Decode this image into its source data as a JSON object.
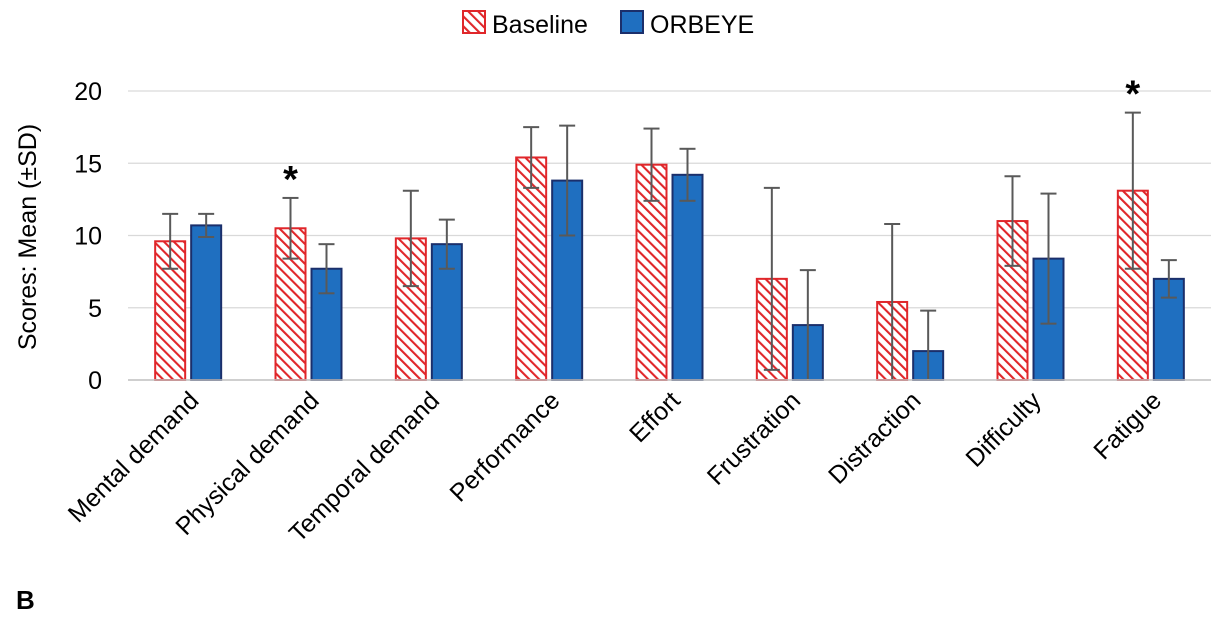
{
  "panel_label": "B",
  "colors": {
    "baseline_stroke": "#e0262a",
    "baseline_hatch": "#e0262a",
    "orbeye_fill": "#1f6fc0",
    "orbeye_stroke": "#1b2f6b",
    "error_bar": "#595959",
    "grid": "#d9d9d9",
    "axis": "#bfbfbf"
  },
  "chart_data": {
    "type": "bar",
    "ylabel": "Scores: Mean (±SD)",
    "ylim": [
      0,
      20
    ],
    "yticks": [
      0,
      5,
      10,
      15,
      20
    ],
    "grid": true,
    "legend_position": "top-center",
    "categories": [
      "Mental demand",
      "Physical demand",
      "Temporal demand",
      "Performance",
      "Effort",
      "Frustration",
      "Distraction",
      "Difficulty",
      "Fatigue"
    ],
    "series": [
      {
        "name": "Baseline",
        "pattern": "red-diagonal-hatch",
        "values": [
          9.6,
          10.5,
          9.8,
          15.4,
          14.9,
          7.0,
          5.4,
          11.0,
          13.1
        ],
        "sd": [
          1.9,
          2.1,
          3.3,
          2.1,
          2.5,
          6.3,
          5.4,
          3.1,
          5.4
        ]
      },
      {
        "name": "ORBEYE",
        "pattern": "solid-blue",
        "values": [
          10.7,
          7.7,
          9.4,
          13.8,
          14.2,
          3.8,
          2.0,
          8.4,
          7.0
        ],
        "sd": [
          0.8,
          1.7,
          1.7,
          3.8,
          1.8,
          3.8,
          2.8,
          4.5,
          1.3
        ]
      }
    ],
    "significance_markers": [
      {
        "category": "Physical demand",
        "label": "*"
      },
      {
        "category": "Fatigue",
        "label": "*"
      }
    ]
  }
}
